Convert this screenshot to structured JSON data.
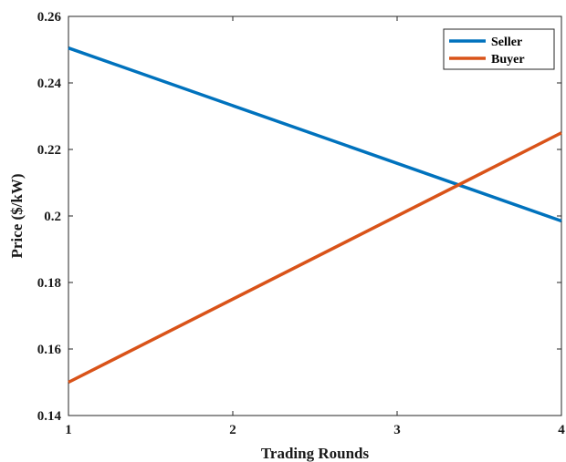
{
  "chart_data": {
    "type": "line",
    "title": "",
    "xlabel": "Trading Rounds",
    "ylabel": "Price  ($/kW)",
    "xlim": [
      1,
      4
    ],
    "ylim": [
      0.14,
      0.26
    ],
    "xticks": [
      "1",
      "2",
      "3",
      "4"
    ],
    "yticks": [
      "0.14",
      "0.16",
      "0.18",
      "0.2",
      "0.22",
      "0.24",
      "0.26"
    ],
    "grid": false,
    "legend_position": "top-right",
    "series": [
      {
        "name": "Seller",
        "color": "#0072BD",
        "x": [
          1,
          4
        ],
        "y": [
          0.2505,
          0.1985
        ]
      },
      {
        "name": "Buyer",
        "color": "#D95319",
        "x": [
          1,
          4
        ],
        "y": [
          0.15,
          0.225
        ]
      }
    ]
  }
}
